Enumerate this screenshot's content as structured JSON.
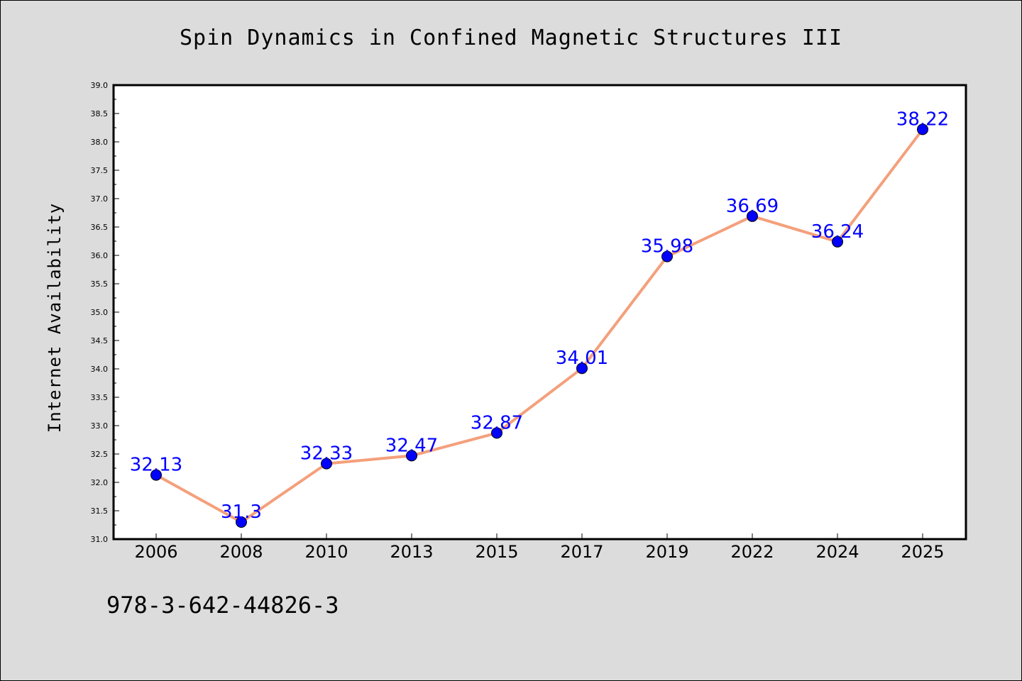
{
  "chart_data": {
    "type": "line",
    "title": "Spin Dynamics in Confined Magnetic Structures III",
    "xlabel": "",
    "ylabel": "Internet Availability",
    "categories": [
      "2006",
      "2008",
      "2010",
      "2013",
      "2015",
      "2017",
      "2019",
      "2022",
      "2024",
      "2025"
    ],
    "values": [
      32.13,
      31.3,
      32.33,
      32.47,
      32.87,
      34.01,
      35.98,
      36.69,
      36.24,
      38.22
    ],
    "data_labels": [
      "32.13",
      "31.3",
      "32.33",
      "32.47",
      "32.87",
      "34.01",
      "35.98",
      "36.69",
      "36.24",
      "38.22"
    ],
    "ylim": [
      31.0,
      39.0
    ],
    "yticks": [
      "31.0",
      "31.5",
      "32.0",
      "32.5",
      "33.0",
      "33.5",
      "34.0",
      "34.5",
      "35.0",
      "35.5",
      "36.0",
      "36.5",
      "37.0",
      "37.5",
      "38.0",
      "38.5",
      "39.0"
    ],
    "line_color": "#f4a07c",
    "marker_color": "#0000ff",
    "label_color": "#0000ff",
    "grid": false,
    "legend": "none"
  },
  "footer": {
    "isbn": "978-3-642-44826-3"
  }
}
